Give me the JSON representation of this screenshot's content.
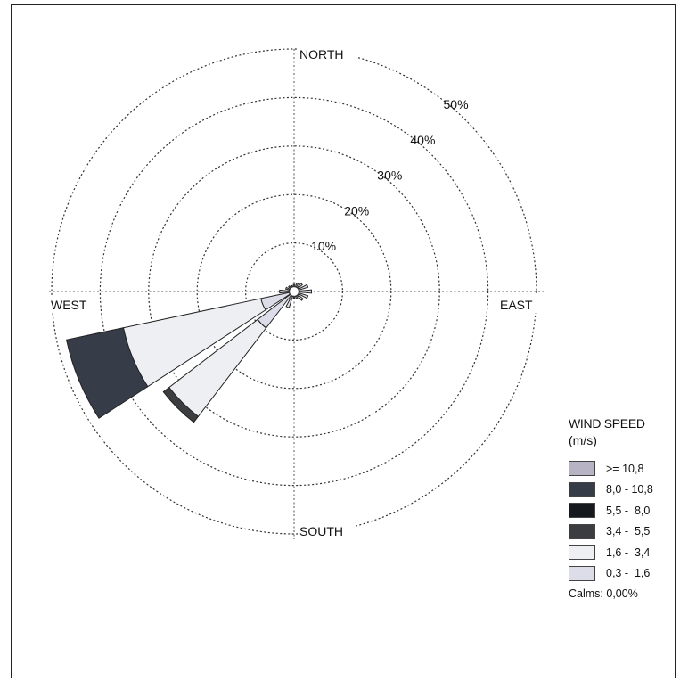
{
  "chart_data": {
    "type": "wind-rose",
    "directions": [
      "NORTH",
      "EAST",
      "SOUTH",
      "WEST"
    ],
    "rings": [
      10,
      20,
      30,
      40,
      50
    ],
    "ring_labels": [
      "10%",
      "20%",
      "30%",
      "40%",
      "50%"
    ],
    "max_percent": 50,
    "legend_title": "WIND SPEED",
    "legend_unit": "(m/s)",
    "speed_classes": [
      {
        "label": ">= 10,8",
        "color": "#b7b3c4"
      },
      {
        "label": "8,0 - 10,8",
        "color": "#363c48"
      },
      {
        "label": "5,5 -  8,0",
        "color": "#16191e"
      },
      {
        "label": "3,4 -  5,5",
        "color": "#3c3d40"
      },
      {
        "label": "1,6 -  3,4",
        "color": "#eeeff3"
      },
      {
        "label": "0,3 -  1,6",
        "color": "#dcdde8"
      }
    ],
    "calms_label": "Calms: 0,00%",
    "sectors": [
      {
        "center_deg": 0,
        "width_deg": 11,
        "stack": [
          {
            "class": "0,3 -  1,6",
            "pct": 1.5
          }
        ]
      },
      {
        "center_deg": 22.5,
        "width_deg": 11,
        "stack": [
          {
            "class": "0,3 -  1,6",
            "pct": 1.8
          }
        ]
      },
      {
        "center_deg": 45,
        "width_deg": 11,
        "stack": [
          {
            "class": "0,3 -  1,6",
            "pct": 2.2
          }
        ]
      },
      {
        "center_deg": 67.5,
        "width_deg": 11,
        "stack": [
          {
            "class": "0,3 -  1,6",
            "pct": 3.0
          }
        ]
      },
      {
        "center_deg": 90,
        "width_deg": 11,
        "stack": [
          {
            "class": "0,3 -  1,6",
            "pct": 3.6
          }
        ]
      },
      {
        "center_deg": 112.5,
        "width_deg": 11,
        "stack": [
          {
            "class": "0,3 -  1,6",
            "pct": 3.0
          }
        ]
      },
      {
        "center_deg": 135,
        "width_deg": 11,
        "stack": [
          {
            "class": "0,3 -  1,6",
            "pct": 2.4
          }
        ]
      },
      {
        "center_deg": 157.5,
        "width_deg": 11,
        "stack": [
          {
            "class": "0,3 -  1,6",
            "pct": 1.6
          }
        ]
      },
      {
        "center_deg": 180,
        "width_deg": 11,
        "stack": [
          {
            "class": "0,3 -  1,6",
            "pct": 1.4
          }
        ]
      },
      {
        "center_deg": 202.5,
        "width_deg": 11,
        "stack": [
          {
            "class": "0,3 -  1,6",
            "pct": 3.5
          }
        ]
      },
      {
        "center_deg": 225,
        "width_deg": 15,
        "stack": [
          {
            "class": "0,3 -  1,6",
            "pct": 9.5
          },
          {
            "class": "1,6 -  3,4",
            "pct": 23.0
          },
          {
            "class": "3,4 -  5,5",
            "pct": 1.5
          }
        ]
      },
      {
        "center_deg": 247.5,
        "width_deg": 21,
        "stack": [
          {
            "class": "0,3 -  1,6",
            "pct": 7.0
          },
          {
            "class": "1,6 -  3,4",
            "pct": 29.0
          },
          {
            "class": "8,0 - 10,8",
            "pct": 12.0
          }
        ]
      },
      {
        "center_deg": 270,
        "width_deg": 11,
        "stack": [
          {
            "class": "0,3 -  1,6",
            "pct": 3.0
          }
        ]
      },
      {
        "center_deg": 292.5,
        "width_deg": 11,
        "stack": [
          {
            "class": "0,3 -  1,6",
            "pct": 1.8
          }
        ]
      },
      {
        "center_deg": 315,
        "width_deg": 11,
        "stack": [
          {
            "class": "0,3 -  1,6",
            "pct": 1.5
          }
        ]
      },
      {
        "center_deg": 337.5,
        "width_deg": 11,
        "stack": [
          {
            "class": "0,3 -  1,6",
            "pct": 1.3
          }
        ]
      }
    ]
  }
}
